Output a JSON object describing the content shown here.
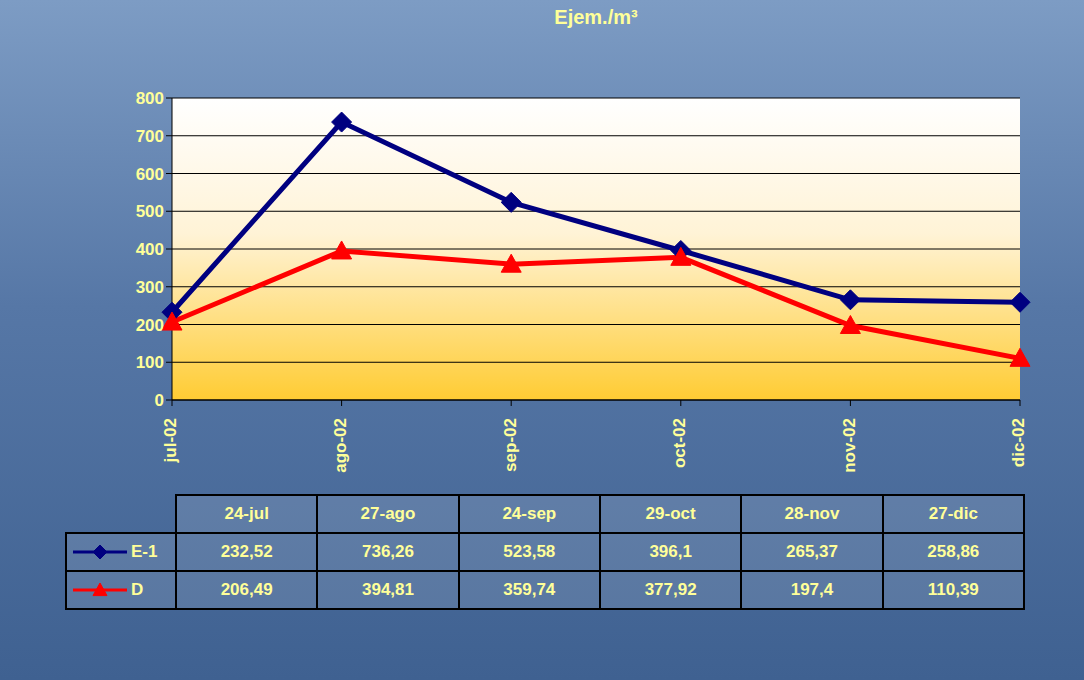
{
  "chart_data": {
    "type": "line",
    "title": "Ejem./m³",
    "categories": [
      "jul-02",
      "ago-02",
      "sep-02",
      "oct-02",
      "nov-02",
      "dic-02"
    ],
    "column_labels": [
      "24-jul",
      "27-ago",
      "24-sep",
      "29-oct",
      "28-nov",
      "27-dic"
    ],
    "series": [
      {
        "name": "E-1",
        "color": "#000080",
        "marker": "diamond",
        "values": [
          232.52,
          736.26,
          523.58,
          396.1,
          265.37,
          258.86
        ],
        "value_labels": [
          "232,52",
          "736,26",
          "523,58",
          "396,1",
          "265,37",
          "258,86"
        ]
      },
      {
        "name": "D",
        "color": "#ff0000",
        "marker": "triangle",
        "values": [
          206.49,
          394.81,
          359.74,
          377.92,
          197.4,
          110.39
        ],
        "value_labels": [
          "206,49",
          "394,81",
          "359,74",
          "377,92",
          "197,4",
          "110,39"
        ]
      }
    ],
    "ylim": [
      0,
      800
    ],
    "yticks": [
      0,
      100,
      200,
      300,
      400,
      500,
      600,
      700,
      800
    ],
    "grid": true
  }
}
